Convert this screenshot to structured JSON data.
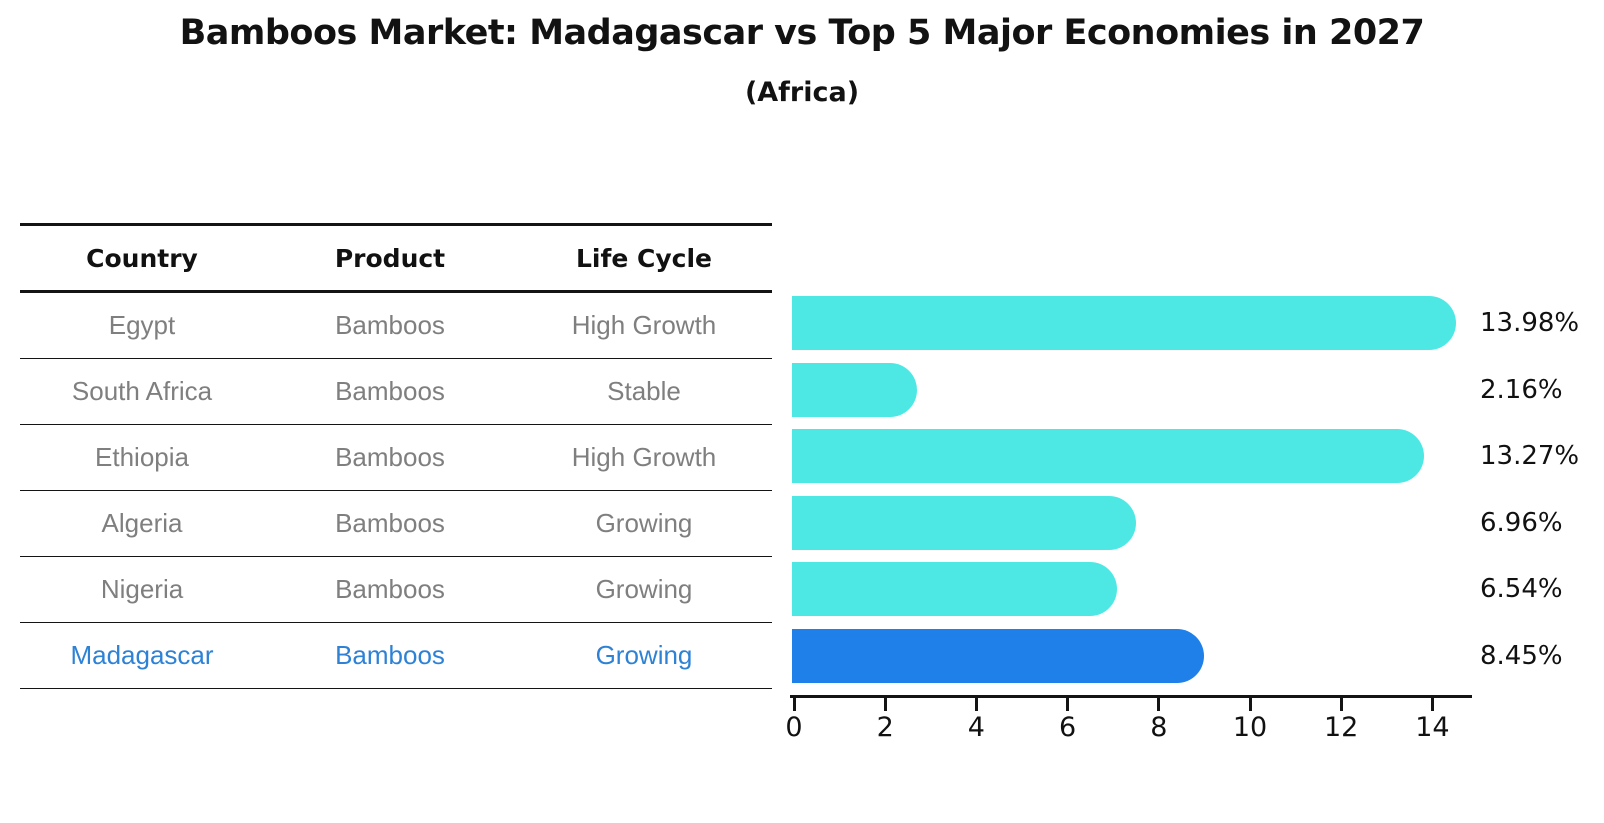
{
  "title": "Bamboos Market: Madagascar vs Top 5 Major Economies in 2027",
  "subtitle": "(Africa)",
  "table": {
    "headers": [
      "Country",
      "Product",
      "Life Cycle"
    ],
    "rows": [
      {
        "country": "Egypt",
        "product": "Bamboos",
        "life_cycle": "High Growth",
        "value": 13.98,
        "value_label": "13.98%",
        "highlight": false
      },
      {
        "country": "South Africa",
        "product": "Bamboos",
        "life_cycle": "Stable",
        "value": 2.16,
        "value_label": "2.16%",
        "highlight": false
      },
      {
        "country": "Ethiopia",
        "product": "Bamboos",
        "life_cycle": "High Growth",
        "value": 13.27,
        "value_label": "13.27%",
        "highlight": false
      },
      {
        "country": "Algeria",
        "product": "Bamboos",
        "life_cycle": "Growing",
        "value": 6.96,
        "value_label": "6.96%",
        "highlight": false
      },
      {
        "country": "Nigeria",
        "product": "Bamboos",
        "life_cycle": "Growing",
        "value": 6.54,
        "value_label": "6.54%",
        "highlight": false
      },
      {
        "country": "Madagascar",
        "product": "Bamboos",
        "life_cycle": "Growing",
        "value": 8.45,
        "value_label": "8.45%",
        "highlight": true
      }
    ]
  },
  "chart_data": {
    "type": "bar",
    "orientation": "horizontal",
    "title": "Bamboos Market: Madagascar vs Top 5 Major Economies in 2027",
    "subtitle": "(Africa)",
    "categories": [
      "Egypt",
      "South Africa",
      "Ethiopia",
      "Algeria",
      "Nigeria",
      "Madagascar"
    ],
    "values": [
      13.98,
      2.16,
      13.27,
      6.96,
      6.54,
      8.45
    ],
    "value_labels": [
      "13.98%",
      "2.16%",
      "13.27%",
      "6.96%",
      "6.54%",
      "8.45%"
    ],
    "xlabel": "",
    "ylabel": "",
    "xlim": [
      0,
      14.84
    ],
    "x_ticks": [
      0,
      2,
      4,
      6,
      8,
      10,
      12,
      14
    ],
    "grid": false,
    "legend": false,
    "bar_color": "#4DE8E4",
    "highlight_color": "#1E80E8",
    "highlight_category": "Madagascar"
  },
  "colors": {
    "bar": "#4DE8E4",
    "highlight_bar": "#1E80E8",
    "highlight_text": "#2E82D6",
    "row_text": "#7F7F7F",
    "header_text": "#111111",
    "axis": "#141414",
    "background": "#FFFFFF"
  }
}
